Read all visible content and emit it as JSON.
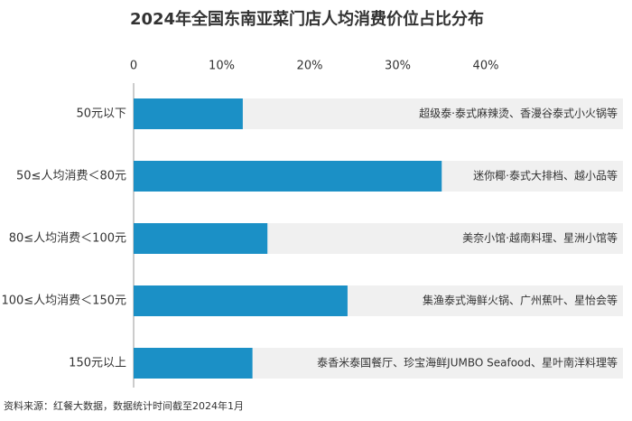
{
  "chart_data": {
    "type": "bar",
    "orientation": "horizontal",
    "title": "2024年全国东南亚菜门店人均消费价位占比分布",
    "categories": [
      "50元以下",
      "50≤人均消费＜80元",
      "80≤人均消费＜100元",
      "100≤人均消费＜150元",
      "150元以上"
    ],
    "values": [
      12.4,
      35.0,
      15.2,
      24.3,
      13.5
    ],
    "annotations": [
      "超级泰·泰式麻辣烫、香漫谷泰式小火锅等",
      "迷你椰·泰式大排档、越小品等",
      "美奈小馆·越南料理、星洲小馆等",
      "集渔泰式海鲜火锅、广州蕉叶、星怡会等",
      "泰香米泰国餐厅、珍宝海鲜JUMBO Seafood、星叶南洋料理等"
    ],
    "color": "#1b90c6",
    "xlim": [
      0,
      40
    ],
    "xticks": [
      0,
      {
        "value": 10,
        "label": "10%"
      },
      {
        "value": 20,
        "label": "20%"
      },
      {
        "value": 30,
        "label": "30%"
      },
      {
        "value": 40,
        "label": "40%"
      }
    ],
    "source": "资料来源：红餐大数据，数据统计时间截至2024年1月"
  }
}
